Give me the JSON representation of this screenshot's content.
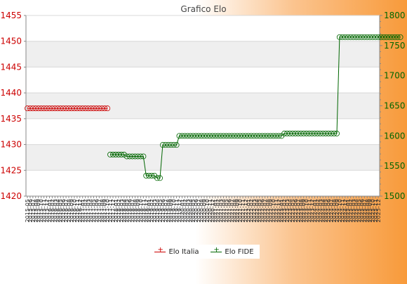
{
  "chart_data": {
    "type": "line",
    "title": "Grafico Elo",
    "x_tick_labels": [
      "2015-05",
      "2015-06",
      "2015-07",
      "2015-08",
      "2015-09",
      "2015-10",
      "2015-11",
      "2015-12",
      "2016-01",
      "2016-02",
      "2016-03",
      "2016-04",
      "2016-05",
      "2016-06",
      "2016-07",
      "2016-08",
      "2016-09",
      "2016-10",
      "2016-11",
      "2016-12",
      "2017-01",
      "2017-02",
      "2017-03",
      "2017-04",
      "2017-05",
      "2017-06",
      "2017-07",
      "2017-08",
      "2017-09",
      "2017-10",
      "2017-11",
      "2017-12",
      "2018-01",
      "2018-02",
      "2018-03",
      "2018-04",
      "2018-05",
      "2018-06",
      "2018-07",
      "2018-08",
      "2018-09",
      "2018-10",
      "2018-11",
      "2018-12",
      "2019-01",
      "2019-02",
      "2019-03",
      "2019-04",
      "2019-05",
      "2019-06",
      "2019-07",
      "2019-08",
      "2019-09",
      "2019-10",
      "2019-11",
      "2019-12",
      "2020-01",
      "2020-02",
      "2020-03",
      "2020-04",
      "2020-05",
      "2020-06",
      "2020-07",
      "2020-08",
      "2020-09",
      "2020-10",
      "2020-11",
      "2020-12",
      "2021-01",
      "2021-02",
      "2021-03",
      "2021-04",
      "2021-05",
      "2021-06",
      "2021-07",
      "2021-08",
      "2021-09",
      "2021-10",
      "2021-11",
      "2021-12",
      "2022-01",
      "2022-02",
      "2022-03",
      "2022-04",
      "2022-05",
      "2022-06",
      "2022-07",
      "2022-08",
      "2022-09",
      "2022-10",
      "2022-11",
      "2022-12",
      "2023-01",
      "2023-02",
      "2023-03",
      "2023-04",
      "2023-05",
      "2023-06",
      "2023-07",
      "2023-08",
      "2023-09",
      "2023-10",
      "2023-11",
      "2023-12",
      "2024-01",
      "2024-02",
      "2024-03",
      "2024-04",
      "2024-05",
      "2024-06",
      "2024-07",
      "2024-08",
      "2024-09",
      "2024-10",
      "2024-11",
      "2024-12",
      "2025-01",
      "2025-02",
      "2025-03",
      "2025-04",
      "2025-05",
      "2025-06",
      "2025-07",
      "2025-08",
      "2025-09",
      "2025-10",
      "2025-11",
      "2025-12"
    ],
    "y_left": {
      "min": 1420,
      "max": 1455,
      "ticks": [
        1420,
        1425,
        1430,
        1435,
        1440,
        1445,
        1450,
        1455
      ]
    },
    "y_right": {
      "min": 1500,
      "max": 1800,
      "ticks": [
        1500,
        1550,
        1600,
        1650,
        1700,
        1750,
        1800
      ]
    },
    "series": [
      {
        "name": "Elo Italia",
        "axis": "left",
        "color": "#cc0000",
        "start_index": 0,
        "values": [
          1437,
          1437,
          1437,
          1437,
          1437,
          1437,
          1437,
          1437,
          1437,
          1437,
          1437,
          1437,
          1437,
          1437,
          1437,
          1437,
          1437,
          1437,
          1437,
          1437,
          1437,
          1437,
          1437,
          1437,
          1437,
          1437,
          1437,
          1437,
          1437,
          1437
        ]
      },
      {
        "name": "Elo FIDE",
        "axis": "right",
        "color": "#006600",
        "start_index": 30,
        "values": [
          1569,
          1569,
          1569,
          1569,
          1569,
          1569,
          1566,
          1566,
          1566,
          1566,
          1566,
          1566,
          1566,
          1534,
          1534,
          1534,
          1534,
          1530,
          1530,
          1585,
          1585,
          1585,
          1585,
          1585,
          1585,
          1600,
          1600,
          1600,
          1600,
          1600,
          1600,
          1600,
          1600,
          1600,
          1600,
          1600,
          1600,
          1600,
          1600,
          1600,
          1600,
          1600,
          1600,
          1600,
          1600,
          1600,
          1600,
          1600,
          1600,
          1600,
          1600,
          1600,
          1600,
          1600,
          1600,
          1600,
          1600,
          1600,
          1600,
          1600,
          1600,
          1600,
          1600,
          1604,
          1604,
          1604,
          1604,
          1604,
          1604,
          1604,
          1604,
          1604,
          1604,
          1604,
          1604,
          1604,
          1604,
          1604,
          1604,
          1604,
          1604,
          1604,
          1604,
          1764,
          1764,
          1764,
          1764,
          1764,
          1764,
          1764,
          1764,
          1764,
          1764,
          1764,
          1764,
          1764,
          1764,
          1764,
          1764,
          1764,
          1764,
          1764,
          1764,
          1764,
          1764,
          1764
        ]
      }
    ],
    "grid": true,
    "legend_position": "bottom"
  },
  "colors": {
    "italia": "#cc0000",
    "fide": "#006600",
    "left_axis_text": "#cc0000",
    "right_axis_text": "#006600"
  }
}
